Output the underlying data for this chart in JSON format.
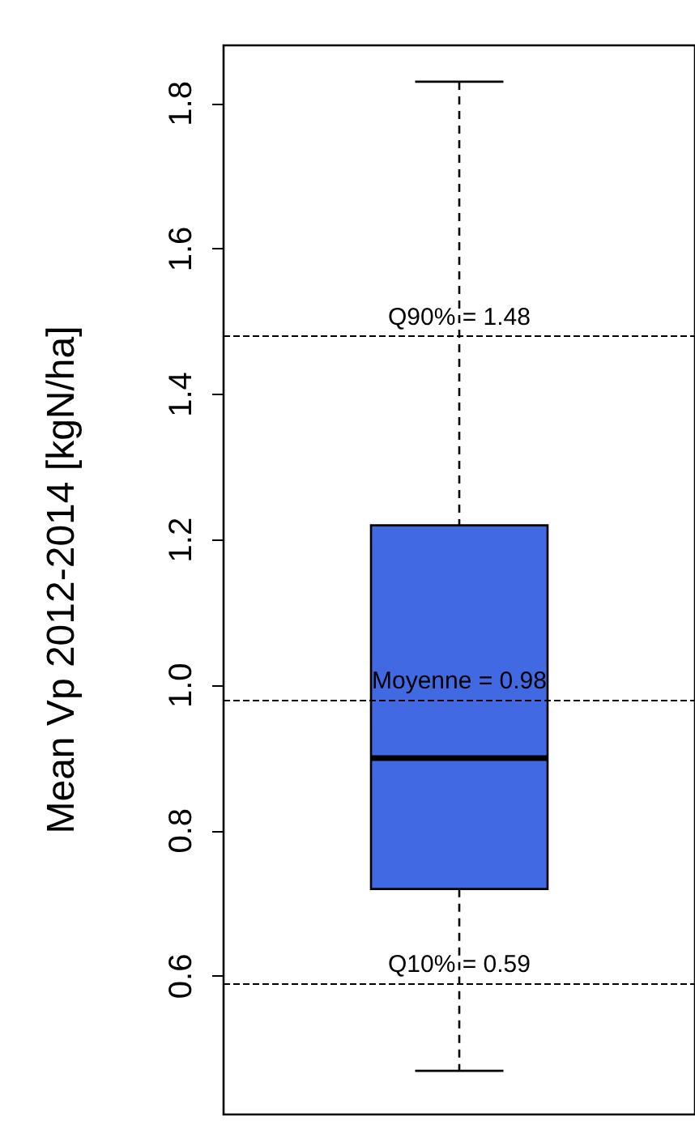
{
  "chart_data": {
    "type": "box",
    "ylabel": "Mean Vp 2012-2014 [kgN/ha]",
    "categories": [
      null
    ],
    "series": [
      {
        "color": "#4169e1",
        "boxes": [
          {
            "low": 0.47,
            "q1": 0.72,
            "median": 0.9,
            "q3": 1.22,
            "high": 1.83
          }
        ]
      }
    ],
    "ylim": [
      0.41,
      1.88
    ],
    "yticks": [
      0.6,
      0.8,
      {
        "value": 1,
        "label": "1.0"
      },
      1.2,
      1.4,
      1.6,
      1.8
    ],
    "ref_lines": [
      {
        "axis": "y",
        "value": 1.48,
        "label": "Q90% = 1.48",
        "line_style": "dashed",
        "color": "#000000"
      },
      {
        "axis": "y",
        "value": 0.98,
        "label": "Moyenne = 0.98",
        "line_style": "dashed",
        "color": "#000000"
      },
      {
        "axis": "y",
        "value": 0.59,
        "label": "Q10% = 0.59",
        "line_style": "dashed",
        "color": "#000000"
      }
    ],
    "line_style": "dashed",
    "grid": false
  }
}
